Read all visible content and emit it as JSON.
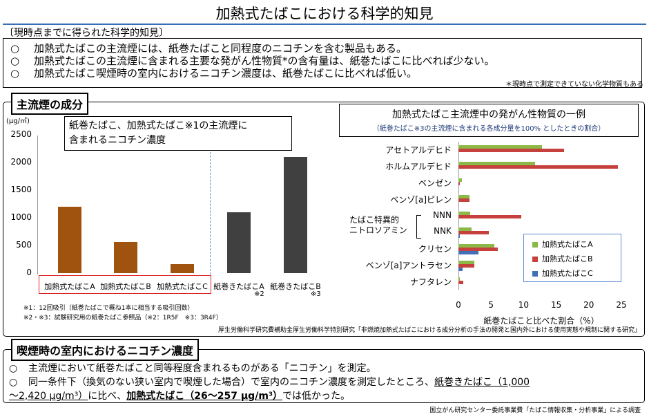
{
  "title": "加熱式たばこにおける科学的知見",
  "findings": {
    "heading": "〔現時点までに得られた科学的知見〕",
    "bullet": "○",
    "lines": [
      "加熱式たばこの主流煙には、紙巻たばこと同程度のニコチンを含む製品もある。",
      "加熱式たばこの主流煙に含まれる主要な発がん性物質*の含有量は、紙巻たばこに比べれば少ない。",
      "加熱式たばこ喫煙時の室内におけるニコチン濃度は、紙巻たばこに比べれば低い。"
    ],
    "note": "＊現時点で測定できていない化学物質もある"
  },
  "smoke_section": {
    "tab": "主流煙の成分",
    "callout_line1": "紙巻たばこ、加熱式たばこ※1の主流煙に",
    "callout_line2": "含まれるニコチン濃度",
    "footnote1": "※1：12回吸引（紙巻たばこで概ね1本に相当する吸引回数）",
    "footnote2": "※2・※3：試験研究用の紙巻たばこ参照品（※2：1R5F　※3：3R4F）",
    "source": "厚生労働科学研究費補助金厚生労働科学特別研究「非燃焼加熱式たばこにおける成分分析の手法の開発と国内外における使用実態や規制に関する研究」"
  },
  "carcinogen_section": {
    "title": "加熱式たばこ主流煙中の発がん性物質の一例",
    "subtitle": "（紙巻たばこ※3の主流煙に含まれる各成分量を100% としたときの割合）",
    "group_label_line1": "たばこ特異的",
    "group_label_line2": "ニトロソアミン"
  },
  "indoor_section": {
    "tab": "喫煙時の室内におけるニコチン濃度",
    "bullet": "○",
    "line1": "主流煙において紙巻たばこと同等程度含まれるものがある「ニコチン」を測定。",
    "line2a": "同一条件下（換気のない狭い室内で喫煙した場合）で室内のニコチン濃度を測定したところ、",
    "line2b": "紙巻きたばこ（1,000",
    "line3a": "～2,420 μg/m³）",
    "line3b": "に比べ、",
    "line3c": "加熱式たばこ（26～257 μg/m³）",
    "line3d": "では低かった。",
    "source": "国立がん研究センター委託事業費「たばこ情報収集・分析事業」による調査"
  },
  "chart_data": [
    {
      "type": "bar",
      "title": "紙巻たばこ、加熱式たばこ※1の主流煙に含まれるニコチン濃度",
      "ylabel": "(μg/㎥)",
      "ylim": [
        0,
        2500
      ],
      "yticks": [
        "2500",
        "2000",
        "1500",
        "1000",
        "500",
        "0"
      ],
      "categories": [
        "加熱式たばこA",
        "加熱式たばこB",
        "加熱式たばこC",
        "紙巻きたばこA",
        "紙巻きたばこB"
      ],
      "category_notes": [
        "",
        "",
        "",
        "※2",
        "※3"
      ],
      "values": [
        1200,
        560,
        160,
        1100,
        2100
      ],
      "colors": [
        "#a0520f",
        "#a0520f",
        "#a0520f",
        "#404040",
        "#404040"
      ]
    },
    {
      "type": "bar",
      "orientation": "horizontal",
      "title": "加熱式たばこ主流煙中の発がん性物質の一例",
      "xlabel": "紙巻たばこと比べた割合（%）",
      "xlim": [
        0,
        25
      ],
      "xticks": [
        "0",
        "5",
        "10",
        "15",
        "20",
        "25"
      ],
      "categories": [
        "アセトアルデヒド",
        "ホルムアルデヒド",
        "ベンゼン",
        "ベンゾ[a]ピレン",
        "NNN",
        "NNK",
        "クリセン",
        "ベンゾ[a]アントラセン",
        "ナフタレン"
      ],
      "series": [
        {
          "name": "加熱式たばこA",
          "color": "#8cb847",
          "values": [
            12.8,
            11.8,
            0.5,
            1.7,
            1.8,
            2.0,
            5.5,
            2.4,
            0.2
          ]
        },
        {
          "name": "加熱式たばこB",
          "color": "#c6413d",
          "values": [
            16.2,
            24.5,
            0.2,
            1.7,
            9.6,
            4.7,
            6.0,
            2.4,
            0.7
          ]
        },
        {
          "name": "加熱式たばこC",
          "color": "#3f70b8",
          "values": [
            0,
            0,
            0,
            0,
            0,
            0.2,
            3.1,
            0.6,
            0
          ]
        }
      ]
    }
  ]
}
